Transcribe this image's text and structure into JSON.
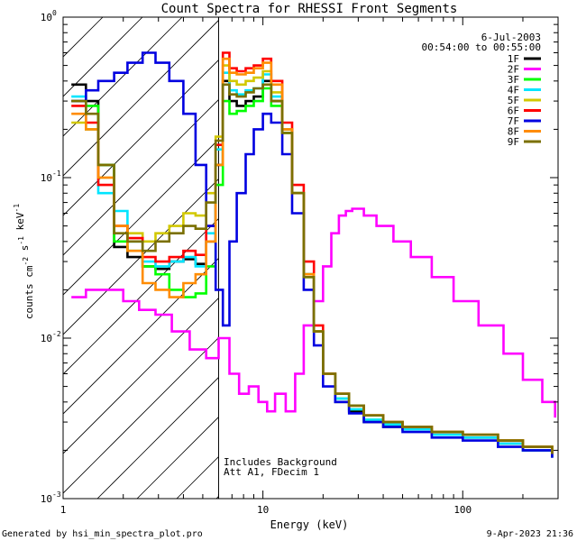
{
  "chart_data": {
    "type": "line",
    "title": "Count Spectra for RHESSI Front Segments",
    "xlabel": "Energy (keV)",
    "ylabel": "counts cm-2 s-1 keV-1",
    "xscale": "log",
    "yscale": "log",
    "xlim": [
      1,
      300
    ],
    "ylim": [
      0.001,
      1
    ],
    "x_ticks": [
      {
        "value": 1,
        "label": "1"
      },
      {
        "value": 10,
        "label": "10"
      },
      {
        "value": 100,
        "label": "100"
      }
    ],
    "y_ticks": [
      {
        "value": 1,
        "label": "10",
        "exp": "0"
      },
      {
        "value": 0.1,
        "label": "10",
        "exp": "-1"
      },
      {
        "value": 0.01,
        "label": "10",
        "exp": "-2"
      },
      {
        "value": 0.001,
        "label": "10",
        "exp": "-3"
      }
    ],
    "date": "6-Jul-2003",
    "time_range": "00:54:00 to 00:55:00",
    "annotation_line1": "Includes Background",
    "annotation_line2": "Att A1, FDecim  1",
    "footer_left": "Generated by hsi_min_spectra_plot.pro",
    "footer_right": "9-Apr-2023 21:36",
    "hatched_region_keV": [
      1,
      6
    ],
    "series": [
      {
        "name": "1F",
        "color": "#000000",
        "x": [
          1.1,
          1.3,
          1.5,
          1.8,
          2.1,
          2.5,
          2.9,
          3.4,
          4.0,
          4.6,
          5.2,
          5.8,
          6.3,
          6.8,
          7.4,
          8.2,
          9.0,
          10.0,
          11.0,
          12.5,
          14.0,
          16.0,
          18.0,
          20.0,
          23.0,
          27.0,
          32.0,
          40.0,
          50.0,
          70.0,
          100.0,
          150.0,
          200.0,
          280.0
        ],
        "values": [
          0.38,
          0.3,
          0.12,
          0.037,
          0.032,
          0.028,
          0.027,
          0.03,
          0.031,
          0.029,
          0.04,
          0.12,
          0.4,
          0.3,
          0.28,
          0.3,
          0.32,
          0.4,
          0.3,
          0.2,
          0.08,
          0.025,
          0.011,
          0.006,
          0.004,
          0.0035,
          0.003,
          0.0028,
          0.0027,
          0.0025,
          0.0024,
          0.0022,
          0.002,
          0.0018
        ]
      },
      {
        "name": "2F",
        "color": "#ff00ff",
        "x": [
          1.1,
          1.3,
          1.6,
          2.0,
          2.4,
          2.9,
          3.5,
          4.3,
          5.2,
          6.0,
          6.8,
          7.6,
          8.5,
          9.5,
          10.5,
          11.5,
          13.0,
          14.5,
          16.0,
          18.0,
          20.0,
          22.0,
          24.0,
          26.0,
          28.0,
          32.0,
          37.0,
          45.0,
          55.0,
          70.0,
          90.0,
          120.0,
          160.0,
          200.0,
          250.0,
          290.0
        ],
        "values": [
          0.018,
          0.02,
          0.02,
          0.017,
          0.015,
          0.014,
          0.011,
          0.0085,
          0.0075,
          0.01,
          0.006,
          0.0045,
          0.005,
          0.004,
          0.0035,
          0.0045,
          0.0035,
          0.006,
          0.012,
          0.017,
          0.028,
          0.045,
          0.058,
          0.062,
          0.064,
          0.058,
          0.05,
          0.04,
          0.032,
          0.024,
          0.017,
          0.012,
          0.008,
          0.0055,
          0.004,
          0.0032
        ]
      },
      {
        "name": "3F",
        "color": "#00ff00",
        "x": [
          1.1,
          1.3,
          1.5,
          1.8,
          2.1,
          2.5,
          2.9,
          3.4,
          4.0,
          4.6,
          5.2,
          5.8,
          6.3,
          6.8,
          7.4,
          8.2,
          9.0,
          10.0,
          11.0,
          12.5,
          14.0,
          16.0,
          18.0,
          20.0,
          23.0,
          27.0,
          32.0,
          40.0,
          50.0,
          70.0,
          100.0,
          150.0,
          200.0,
          280.0
        ],
        "values": [
          0.3,
          0.28,
          0.12,
          0.04,
          0.035,
          0.028,
          0.025,
          0.02,
          0.018,
          0.019,
          0.028,
          0.09,
          0.3,
          0.25,
          0.26,
          0.28,
          0.3,
          0.36,
          0.28,
          0.19,
          0.08,
          0.024,
          0.011,
          0.006,
          0.0042,
          0.0036,
          0.0031,
          0.0029,
          0.0028,
          0.0026,
          0.0025,
          0.0023,
          0.0021,
          0.0019
        ]
      },
      {
        "name": "4F",
        "color": "#00e5ff",
        "x": [
          1.1,
          1.3,
          1.5,
          1.8,
          2.1,
          2.5,
          2.9,
          3.4,
          4.0,
          4.6,
          5.2,
          5.8,
          6.3,
          6.8,
          7.4,
          8.2,
          9.0,
          10.0,
          11.0,
          12.5,
          14.0,
          16.0,
          18.0,
          20.0,
          23.0,
          27.0,
          32.0,
          40.0,
          50.0,
          70.0,
          100.0,
          150.0,
          200.0,
          280.0
        ],
        "values": [
          0.32,
          0.2,
          0.08,
          0.062,
          0.04,
          0.03,
          0.028,
          0.03,
          0.032,
          0.028,
          0.045,
          0.15,
          0.45,
          0.35,
          0.33,
          0.35,
          0.36,
          0.44,
          0.32,
          0.2,
          0.08,
          0.025,
          0.011,
          0.006,
          0.0042,
          0.0036,
          0.0031,
          0.0029,
          0.0027,
          0.0025,
          0.0024,
          0.0022,
          0.002,
          0.0018
        ]
      },
      {
        "name": "5F",
        "color": "#d2c800",
        "x": [
          1.1,
          1.3,
          1.5,
          1.8,
          2.1,
          2.5,
          2.9,
          3.4,
          4.0,
          4.6,
          5.2,
          5.8,
          6.3,
          6.8,
          7.4,
          8.2,
          9.0,
          10.0,
          11.0,
          12.5,
          14.0,
          16.0,
          18.0,
          20.0,
          23.0,
          27.0,
          32.0,
          40.0,
          50.0,
          70.0,
          100.0,
          150.0,
          200.0,
          280.0
        ],
        "values": [
          0.22,
          0.2,
          0.1,
          0.05,
          0.045,
          0.04,
          0.045,
          0.05,
          0.06,
          0.058,
          0.08,
          0.18,
          0.5,
          0.4,
          0.38,
          0.4,
          0.42,
          0.46,
          0.34,
          0.2,
          0.08,
          0.025,
          0.011,
          0.006,
          0.0045,
          0.0038,
          0.0033,
          0.003,
          0.0028,
          0.0026,
          0.0025,
          0.0023,
          0.0021,
          0.0019
        ]
      },
      {
        "name": "6F",
        "color": "#ff0000",
        "x": [
          1.1,
          1.3,
          1.5,
          1.8,
          2.1,
          2.5,
          2.9,
          3.4,
          4.0,
          4.6,
          5.2,
          5.8,
          6.3,
          6.8,
          7.4,
          8.2,
          9.0,
          10.0,
          11.0,
          12.5,
          14.0,
          16.0,
          18.0,
          20.0,
          23.0,
          27.0,
          32.0,
          40.0,
          50.0,
          70.0,
          100.0,
          150.0,
          200.0,
          280.0
        ],
        "values": [
          0.28,
          0.22,
          0.09,
          0.05,
          0.042,
          0.032,
          0.03,
          0.032,
          0.035,
          0.033,
          0.05,
          0.16,
          0.6,
          0.48,
          0.46,
          0.48,
          0.5,
          0.55,
          0.4,
          0.22,
          0.09,
          0.03,
          0.012,
          0.006,
          0.0045,
          0.0038,
          0.0033,
          0.003,
          0.0028,
          0.0026,
          0.0025,
          0.0023,
          0.0021,
          0.0019
        ]
      },
      {
        "name": "7F",
        "color": "#0000e0",
        "x": [
          1.1,
          1.3,
          1.5,
          1.8,
          2.1,
          2.5,
          2.9,
          3.4,
          4.0,
          4.6,
          5.2,
          5.8,
          6.3,
          6.8,
          7.4,
          8.2,
          9.0,
          10.0,
          11.0,
          12.5,
          14.0,
          16.0,
          18.0,
          20.0,
          23.0,
          27.0,
          32.0,
          40.0,
          50.0,
          70.0,
          100.0,
          150.0,
          200.0,
          280.0
        ],
        "values": [
          0.3,
          0.35,
          0.4,
          0.45,
          0.52,
          0.6,
          0.52,
          0.4,
          0.25,
          0.12,
          0.05,
          0.02,
          0.012,
          0.04,
          0.08,
          0.14,
          0.2,
          0.25,
          0.22,
          0.14,
          0.06,
          0.02,
          0.009,
          0.005,
          0.004,
          0.0034,
          0.003,
          0.0028,
          0.0026,
          0.0024,
          0.0023,
          0.0021,
          0.002,
          0.0018
        ]
      },
      {
        "name": "8F",
        "color": "#ff8c00",
        "x": [
          1.1,
          1.3,
          1.5,
          1.8,
          2.1,
          2.5,
          2.9,
          3.4,
          4.0,
          4.6,
          5.2,
          5.8,
          6.3,
          6.8,
          7.4,
          8.2,
          9.0,
          10.0,
          11.0,
          12.5,
          14.0,
          16.0,
          18.0,
          20.0,
          23.0,
          27.0,
          32.0,
          40.0,
          50.0,
          70.0,
          100.0,
          150.0,
          200.0,
          280.0
        ],
        "values": [
          0.25,
          0.2,
          0.1,
          0.05,
          0.035,
          0.022,
          0.02,
          0.018,
          0.022,
          0.025,
          0.04,
          0.12,
          0.55,
          0.45,
          0.44,
          0.45,
          0.48,
          0.52,
          0.38,
          0.2,
          0.08,
          0.025,
          0.011,
          0.006,
          0.0045,
          0.0038,
          0.0033,
          0.003,
          0.0028,
          0.0026,
          0.0025,
          0.0023,
          0.0021,
          0.0019
        ]
      },
      {
        "name": "9F",
        "color": "#7b7000",
        "x": [
          1.1,
          1.3,
          1.5,
          1.8,
          2.1,
          2.5,
          2.9,
          3.4,
          4.0,
          4.6,
          5.2,
          5.8,
          6.3,
          6.8,
          7.4,
          8.2,
          9.0,
          10.0,
          11.0,
          12.5,
          14.0,
          16.0,
          18.0,
          20.0,
          23.0,
          27.0,
          32.0,
          40.0,
          50.0,
          70.0,
          100.0,
          150.0,
          200.0,
          280.0
        ],
        "values": [
          0.3,
          0.25,
          0.12,
          0.045,
          0.04,
          0.035,
          0.04,
          0.045,
          0.05,
          0.048,
          0.07,
          0.17,
          0.38,
          0.33,
          0.32,
          0.34,
          0.36,
          0.38,
          0.3,
          0.19,
          0.08,
          0.024,
          0.011,
          0.006,
          0.0045,
          0.0038,
          0.0033,
          0.003,
          0.0028,
          0.0026,
          0.0025,
          0.0023,
          0.0021,
          0.0019
        ]
      }
    ]
  }
}
